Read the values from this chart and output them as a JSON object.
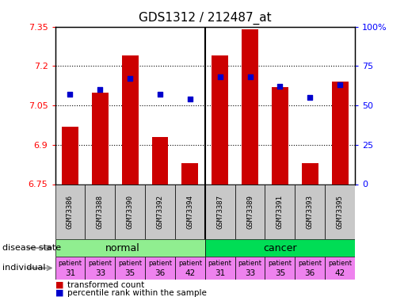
{
  "title": "GDS1312 / 212487_at",
  "samples": [
    "GSM73386",
    "GSM73388",
    "GSM73390",
    "GSM73392",
    "GSM73394",
    "GSM73387",
    "GSM73389",
    "GSM73391",
    "GSM73393",
    "GSM73395"
  ],
  "transformed_count": [
    6.97,
    7.1,
    7.24,
    6.93,
    6.83,
    7.24,
    7.34,
    7.12,
    6.83,
    7.14
  ],
  "percentile_rank": [
    57,
    60,
    67,
    57,
    54,
    68,
    68,
    62,
    55,
    63
  ],
  "ylim": [
    6.75,
    7.35
  ],
  "yticks": [
    6.75,
    6.9,
    7.05,
    7.2,
    7.35
  ],
  "ytick_labels": [
    "6.75",
    "6.9",
    "7.05",
    "7.2",
    "7.35"
  ],
  "y2lim": [
    0,
    100
  ],
  "y2ticks": [
    0,
    25,
    50,
    75,
    100
  ],
  "y2tick_labels": [
    "0",
    "25",
    "50",
    "75",
    "100%"
  ],
  "normal_color": "#90EE90",
  "cancer_color": "#00DD55",
  "individual_color": "#EE82EE",
  "patients": [
    "31",
    "33",
    "35",
    "36",
    "42",
    "31",
    "33",
    "35",
    "36",
    "42"
  ],
  "bar_color": "#CC0000",
  "dot_color": "#0000CC",
  "bg_color": "#FFFFFF",
  "sample_bg": "#C8C8C8",
  "legend_red_label": "transformed count",
  "legend_blue_label": "percentile rank within the sample",
  "disease_label": "disease state",
  "individual_label": "individual",
  "separator_index": 5
}
